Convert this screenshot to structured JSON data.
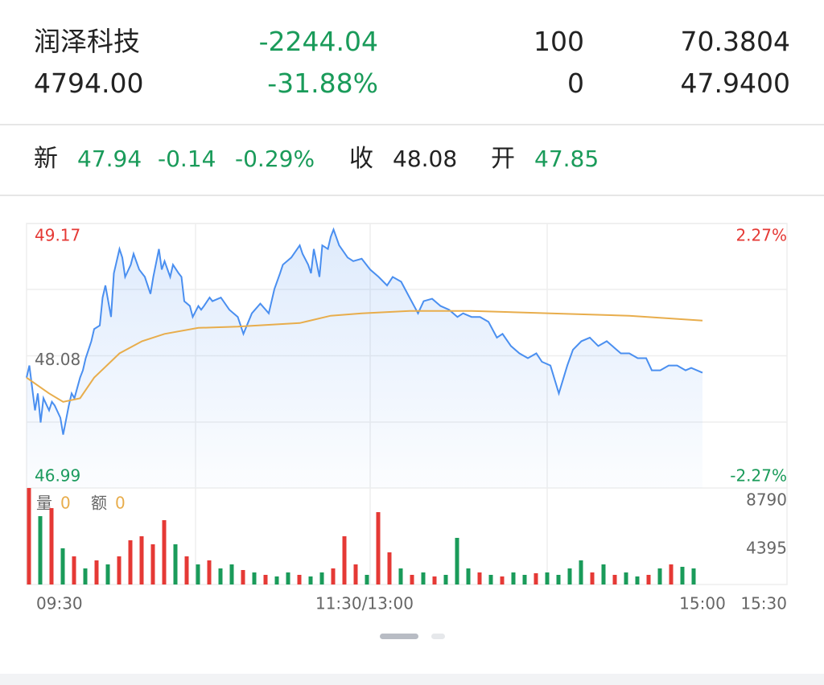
{
  "header": {
    "rows": [
      [
        "润泽科技",
        "-2244.04",
        "100",
        "70.3804"
      ],
      [
        "4794.00",
        "-31.88%",
        "0",
        "47.9400"
      ]
    ]
  },
  "quote": {
    "new_label": "新",
    "new": "47.94",
    "change": "-0.14",
    "percent": "-0.29%",
    "close_label": "收",
    "close": "48.08",
    "open_label": "开",
    "open": "47.85"
  },
  "chart_data": [
    {
      "type": "line",
      "xlim": [
        0,
        270
      ],
      "xticks": [
        {
          "value": 0,
          "label": "09:30"
        },
        {
          "value": 120,
          "label": "11:30/13:00"
        },
        {
          "value": 240,
          "label": "15:00"
        },
        {
          "value": 270,
          "label": "15:30"
        }
      ],
      "ylim": [
        46.99,
        49.17
      ],
      "yticks": [
        49.17,
        48.08,
        46.99
      ],
      "y2lim": [
        -2.27,
        2.27
      ],
      "y2ticks": [
        {
          "value": 2.27,
          "label": "2.27%"
        },
        {
          "value": -2.27,
          "label": "-2.27%"
        }
      ],
      "grid": true,
      "series": [
        {
          "color": "#4a8ff0",
          "x": [
            0,
            1,
            3,
            4,
            5,
            6,
            8,
            9,
            10,
            12,
            13,
            15,
            16,
            17,
            19,
            20,
            21,
            23,
            24,
            26,
            27,
            28,
            30,
            31,
            33,
            34,
            35,
            37,
            38,
            40,
            41,
            42,
            44,
            45,
            47,
            48,
            49,
            51,
            52,
            54,
            55,
            56,
            58,
            59,
            61,
            62,
            63,
            65,
            66,
            69,
            72,
            75,
            77,
            80,
            83,
            86,
            88,
            90,
            91,
            94,
            97,
            98,
            100,
            101,
            102,
            104,
            105,
            107,
            108,
            109,
            111,
            114,
            116,
            119,
            122,
            125,
            128,
            130,
            133,
            136,
            139,
            141,
            144,
            147,
            150,
            153,
            155,
            158,
            161,
            164,
            167,
            169,
            172,
            175,
            178,
            181,
            183,
            186,
            189,
            192,
            194,
            197,
            200,
            203,
            206,
            208,
            211,
            214,
            217,
            220,
            222,
            225,
            228,
            231,
            234,
            236,
            240
          ],
          "values": [
            47.9,
            48.0,
            47.63,
            47.77,
            47.53,
            47.73,
            47.63,
            47.7,
            47.67,
            47.57,
            47.43,
            47.67,
            47.77,
            47.73,
            47.9,
            47.96,
            48.06,
            48.2,
            48.3,
            48.33,
            48.56,
            48.66,
            48.4,
            48.76,
            48.96,
            48.89,
            48.73,
            48.83,
            48.92,
            48.79,
            48.76,
            48.73,
            48.59,
            48.73,
            48.96,
            48.79,
            48.86,
            48.73,
            48.83,
            48.76,
            48.73,
            48.53,
            48.49,
            48.4,
            48.49,
            48.46,
            48.49,
            48.56,
            48.53,
            48.56,
            48.46,
            48.4,
            48.26,
            48.43,
            48.51,
            48.43,
            48.63,
            48.76,
            48.83,
            48.89,
            48.99,
            48.92,
            48.83,
            48.76,
            48.96,
            48.73,
            48.99,
            48.96,
            49.06,
            49.12,
            48.99,
            48.89,
            48.86,
            48.88,
            48.79,
            48.73,
            48.66,
            48.73,
            48.69,
            48.56,
            48.43,
            48.53,
            48.55,
            48.49,
            48.46,
            48.4,
            48.43,
            48.4,
            48.4,
            48.36,
            48.23,
            48.26,
            48.16,
            48.1,
            48.06,
            48.1,
            48.03,
            48.0,
            47.77,
            48.0,
            48.13,
            48.2,
            48.23,
            48.16,
            48.2,
            48.16,
            48.1,
            48.1,
            48.06,
            48.06,
            47.96,
            47.96,
            48.0,
            48.0,
            47.96,
            47.98,
            47.94
          ]
        },
        {
          "color": "#e8ad4c",
          "x": [
            0,
            8,
            13,
            19,
            24,
            33,
            41,
            49,
            61,
            75,
            97,
            108,
            119,
            136,
            158,
            186,
            214,
            240
          ],
          "values": [
            47.9,
            47.77,
            47.7,
            47.73,
            47.9,
            48.1,
            48.2,
            48.26,
            48.31,
            48.32,
            48.35,
            48.41,
            48.43,
            48.45,
            48.45,
            48.43,
            48.41,
            48.37
          ]
        }
      ]
    },
    {
      "type": "bar",
      "ylim": [
        0,
        8790
      ],
      "yticks": [
        4395,
        8790
      ],
      "legend_items": [
        {
          "label": "量",
          "value": "0"
        },
        {
          "label": "额",
          "value": "0"
        }
      ],
      "x": [
        0,
        4,
        8,
        12,
        16,
        20,
        24,
        28,
        32,
        36,
        40,
        44,
        48,
        52,
        56,
        60,
        64,
        68,
        72,
        76,
        80,
        84,
        88,
        92,
        96,
        100,
        104,
        108,
        112,
        116,
        120,
        124,
        128,
        132,
        136,
        140,
        144,
        148,
        152,
        156,
        160,
        164,
        168,
        172,
        176,
        180,
        184,
        188,
        192,
        196,
        200,
        204,
        208,
        212,
        216,
        220,
        224,
        228,
        232,
        236
      ],
      "values": [
        8790,
        6226,
        6959,
        3296,
        2564,
        1465,
        2198,
        1831,
        2564,
        4029,
        4395,
        3663,
        5860,
        3663,
        2564,
        1831,
        2198,
        1465,
        1831,
        1319,
        1099,
        879,
        733,
        1099,
        879,
        733,
        1099,
        1465,
        4395,
        1831,
        879,
        6593,
        2930,
        1465,
        879,
        1099,
        733,
        879,
        4249,
        1465,
        1099,
        879,
        733,
        1099,
        879,
        1026,
        1099,
        879,
        1465,
        2198,
        1099,
        1831,
        879,
        1099,
        733,
        879,
        1465,
        1831,
        1612,
        1465
      ],
      "colors": [
        "#e53935",
        "#1a9b5a",
        "#e53935",
        "#1a9b5a",
        "#e53935",
        "#1a9b5a",
        "#e53935",
        "#1a9b5a",
        "#e53935",
        "#e53935",
        "#e53935",
        "#e53935",
        "#e53935",
        "#1a9b5a",
        "#e53935",
        "#1a9b5a",
        "#e53935",
        "#1a9b5a",
        "#1a9b5a",
        "#e53935",
        "#1a9b5a",
        "#e53935",
        "#1a9b5a",
        "#1a9b5a",
        "#e53935",
        "#1a9b5a",
        "#1a9b5a",
        "#e53935",
        "#e53935",
        "#e53935",
        "#1a9b5a",
        "#e53935",
        "#e53935",
        "#1a9b5a",
        "#e53935",
        "#1a9b5a",
        "#e53935",
        "#1a9b5a",
        "#1a9b5a",
        "#1a9b5a",
        "#e53935",
        "#1a9b5a",
        "#e53935",
        "#1a9b5a",
        "#1a9b5a",
        "#e53935",
        "#1a9b5a",
        "#1a9b5a",
        "#1a9b5a",
        "#1a9b5a",
        "#e53935",
        "#1a9b5a",
        "#e53935",
        "#1a9b5a",
        "#1a9b5a",
        "#e53935",
        "#1a9b5a",
        "#e53935",
        "#1a9b5a",
        "#1a9b5a"
      ]
    }
  ]
}
